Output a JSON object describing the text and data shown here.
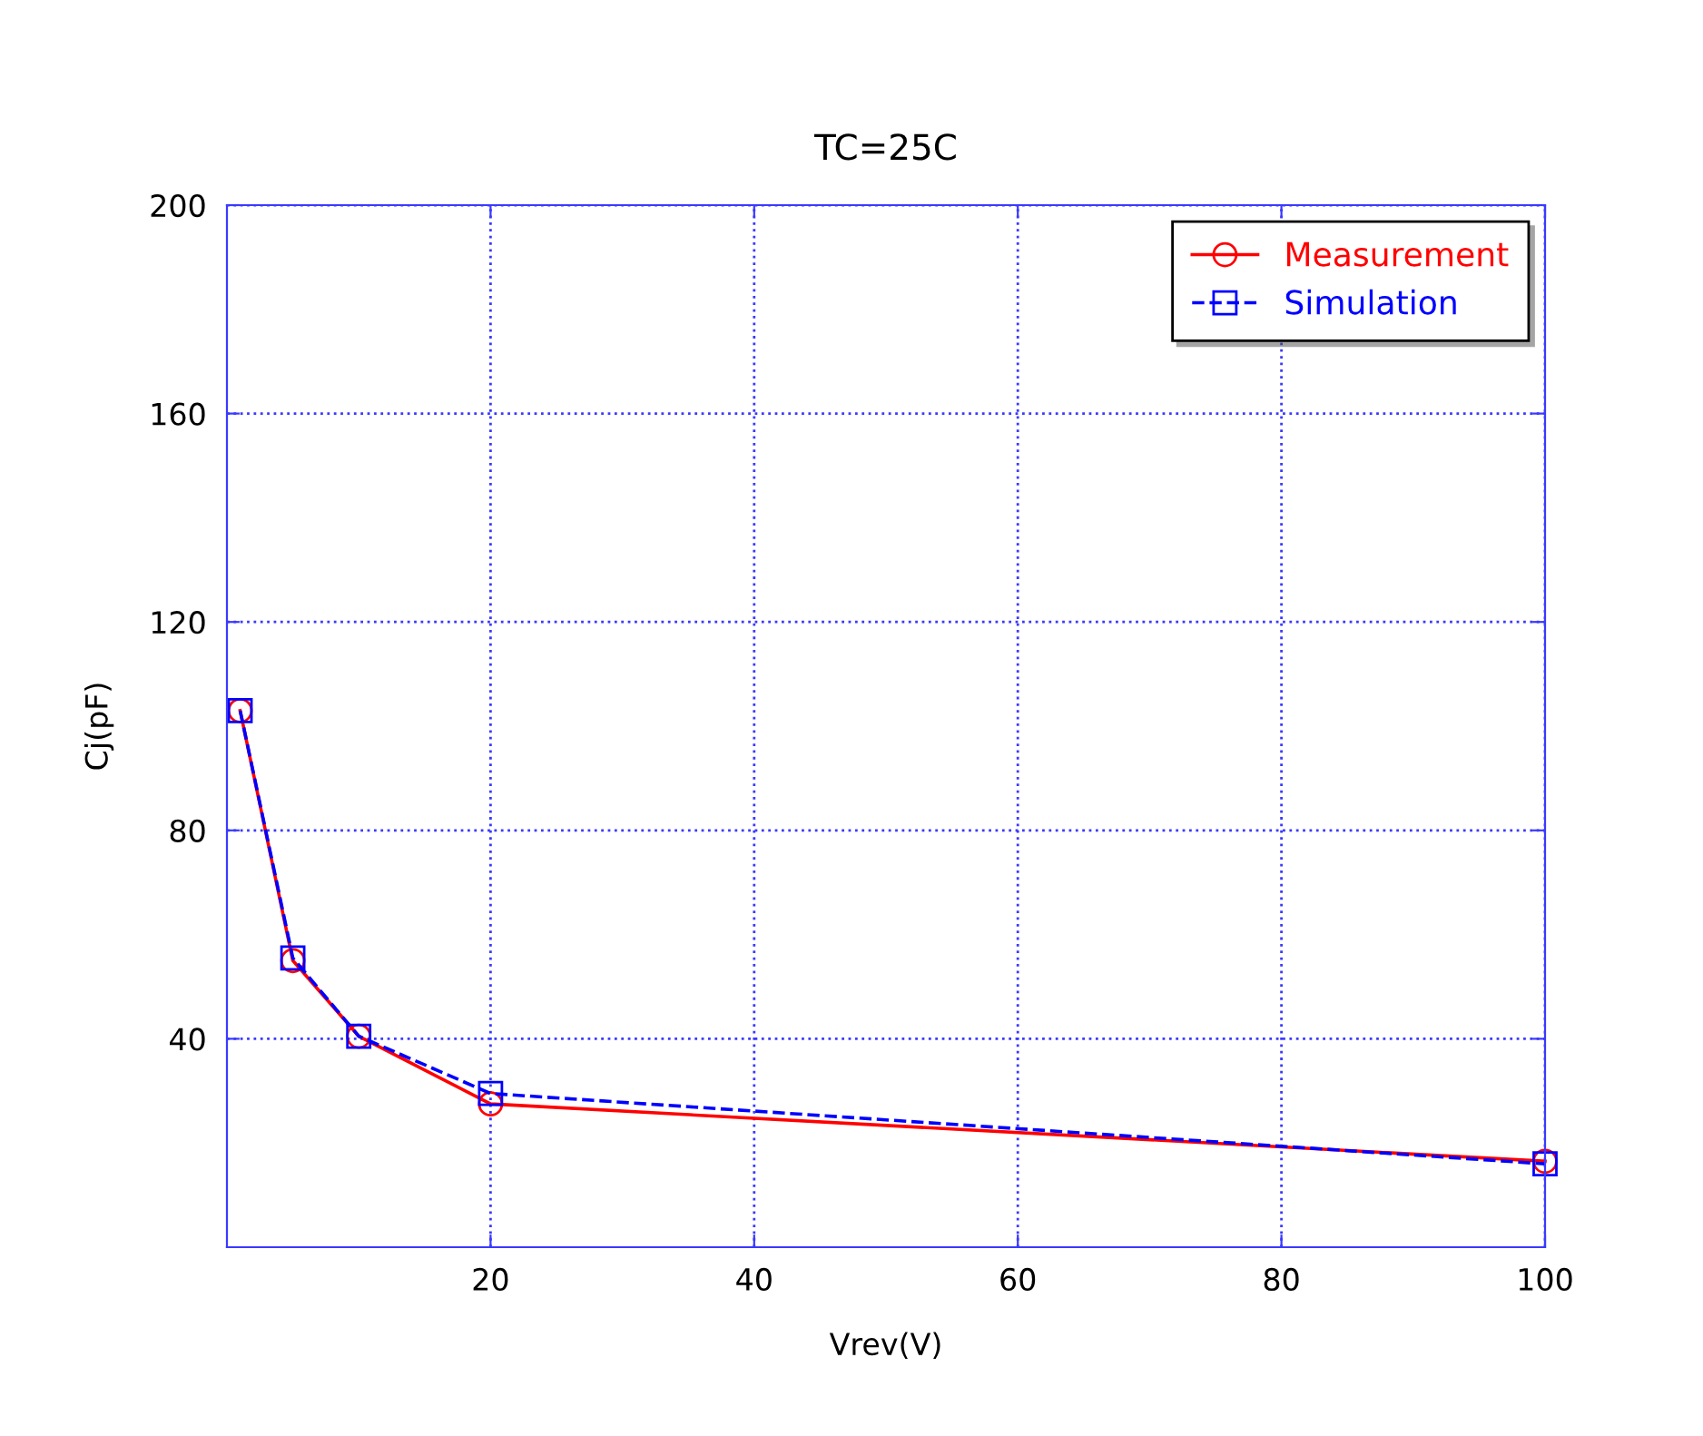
{
  "chart_data": {
    "type": "line",
    "title": "TC=25C",
    "xlabel": "Vrev(V)",
    "ylabel": "Cj(pF)",
    "x": [
      1,
      5,
      10,
      20,
      100
    ],
    "series": [
      {
        "name": "Measurement",
        "color": "#ff0000",
        "values": [
          103,
          55,
          40.5,
          27.5,
          16.5
        ],
        "marker": "circle",
        "line_style": "solid"
      },
      {
        "name": "Simulation",
        "color": "#0000ff",
        "values": [
          103,
          55.5,
          40.5,
          29.5,
          16
        ],
        "marker": "square",
        "line_style": "dashed"
      }
    ],
    "xlim": [
      0,
      100
    ],
    "xticks": [
      20,
      40,
      60,
      80,
      100
    ],
    "ylim": [
      0,
      200
    ],
    "yticks": [
      40,
      80,
      120,
      160,
      200
    ],
    "grid": true,
    "legend": "top right"
  }
}
